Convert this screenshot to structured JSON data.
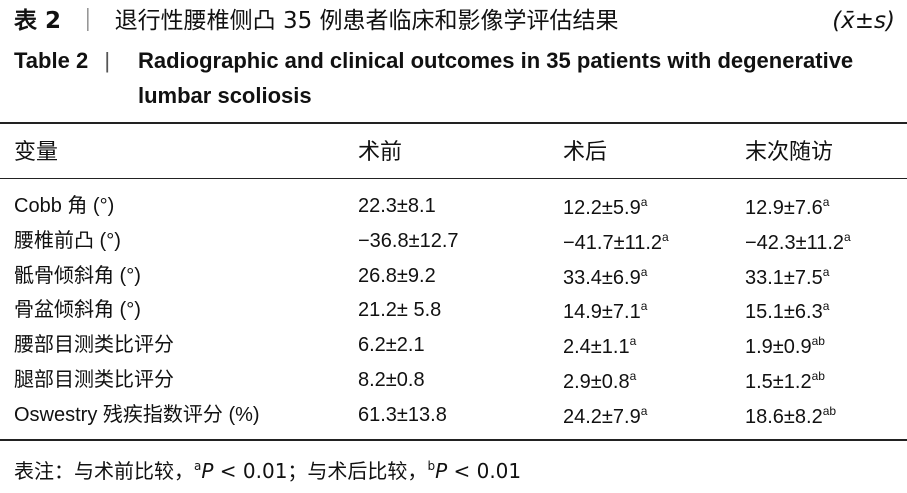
{
  "title": {
    "label": "表 2",
    "text": "退行性腰椎侧凸 35 例患者临床和影像学评估结果",
    "stat": "(x̄±s)"
  },
  "title_en": {
    "label": "Table 2",
    "text": "Radiographic and clinical outcomes in 35 patients with degenerative lumbar scoliosis"
  },
  "table": {
    "headers": [
      "变量",
      "术前",
      "术后",
      "末次随访"
    ],
    "rows": [
      [
        {
          "text": "Cobb 角 (°)"
        },
        {
          "text": "22.3±8.1"
        },
        {
          "text": "12.2±5.9",
          "sup": "a"
        },
        {
          "text": "12.9±7.6",
          "sup": "a"
        }
      ],
      [
        {
          "text": "腰椎前凸 (°)"
        },
        {
          "text": "−36.8±12.7"
        },
        {
          "text": "−41.7±11.2",
          "sup": "a"
        },
        {
          "text": "−42.3±11.2",
          "sup": "a"
        }
      ],
      [
        {
          "text": "骶骨倾斜角 (°)"
        },
        {
          "text": "26.8±9.2"
        },
        {
          "text": "33.4±6.9",
          "sup": "a"
        },
        {
          "text": "33.1±7.5",
          "sup": "a"
        }
      ],
      [
        {
          "text": "骨盆倾斜角 (°)"
        },
        {
          "text": "21.2± 5.8"
        },
        {
          "text": "14.9±7.1",
          "sup": "a"
        },
        {
          "text": "15.1±6.3",
          "sup": "a"
        }
      ],
      [
        {
          "text": "腰部目测类比评分"
        },
        {
          "text": "6.2±2.1"
        },
        {
          "text": "2.4±1.1",
          "sup": "a"
        },
        {
          "text": "1.9±0.9",
          "sup": "ab"
        }
      ],
      [
        {
          "text": "腿部目测类比评分"
        },
        {
          "text": "8.2±0.8"
        },
        {
          "text": "2.9±0.8",
          "sup": "a"
        },
        {
          "text": "1.5±1.2",
          "sup": "ab"
        }
      ],
      [
        {
          "text": "Oswestry 残疾指数评分 (%)"
        },
        {
          "text": "61.3±13.8"
        },
        {
          "text": "24.2±7.9",
          "sup": "a"
        },
        {
          "text": "18.6±8.2",
          "sup": "ab"
        }
      ]
    ]
  },
  "footnote": {
    "prefix": "表注：与术前比较，",
    "a_sup": "a",
    "a_p": "P",
    "a_rest": " < 0.01；与术后比较，",
    "b_sup": "b",
    "b_p": "P",
    "b_rest": " < 0.01"
  }
}
